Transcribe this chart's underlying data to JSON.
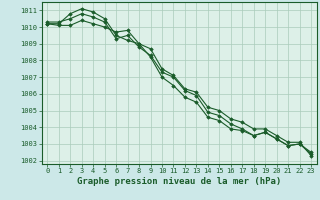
{
  "xlabel": "Graphe pression niveau de la mer (hPa)",
  "background_color": "#cce8e8",
  "grid_color": "#aaccbb",
  "plot_bg_color": "#ddf0e8",
  "line_color": "#1a5c2a",
  "ylim": [
    1001.8,
    1011.5
  ],
  "xlim": [
    -0.5,
    23.5
  ],
  "yticks": [
    1002,
    1003,
    1004,
    1005,
    1006,
    1007,
    1008,
    1009,
    1010,
    1011
  ],
  "xticks": [
    0,
    1,
    2,
    3,
    4,
    5,
    6,
    7,
    8,
    9,
    10,
    11,
    12,
    13,
    14,
    15,
    16,
    17,
    18,
    19,
    20,
    21,
    22,
    23
  ],
  "line1": [
    1010.2,
    1010.2,
    1010.8,
    1011.1,
    1010.9,
    1010.5,
    1009.5,
    1009.2,
    1009.0,
    1008.7,
    1007.5,
    1007.1,
    1006.3,
    1006.1,
    1005.2,
    1005.0,
    1004.5,
    1004.3,
    1003.9,
    1003.9,
    1003.5,
    1003.1,
    1003.1,
    1002.3
  ],
  "line2": [
    1010.3,
    1010.3,
    1010.5,
    1010.8,
    1010.6,
    1010.3,
    1009.3,
    1009.5,
    1008.8,
    1008.3,
    1007.3,
    1007.0,
    1006.2,
    1005.9,
    1004.9,
    1004.7,
    1004.2,
    1003.9,
    1003.5,
    1003.7,
    1003.3,
    1002.9,
    1003.0,
    1002.4
  ],
  "line3": [
    1010.2,
    1010.1,
    1010.1,
    1010.4,
    1010.2,
    1010.0,
    1009.7,
    1009.8,
    1009.0,
    1008.2,
    1007.0,
    1006.5,
    1005.8,
    1005.5,
    1004.6,
    1004.4,
    1003.9,
    1003.8,
    1003.5,
    1003.7,
    1003.3,
    1002.9,
    1003.0,
    1002.5
  ],
  "marker": "D",
  "markersize": 1.8,
  "linewidth": 0.8,
  "tick_fontsize": 5.0,
  "xlabel_fontsize": 6.5
}
